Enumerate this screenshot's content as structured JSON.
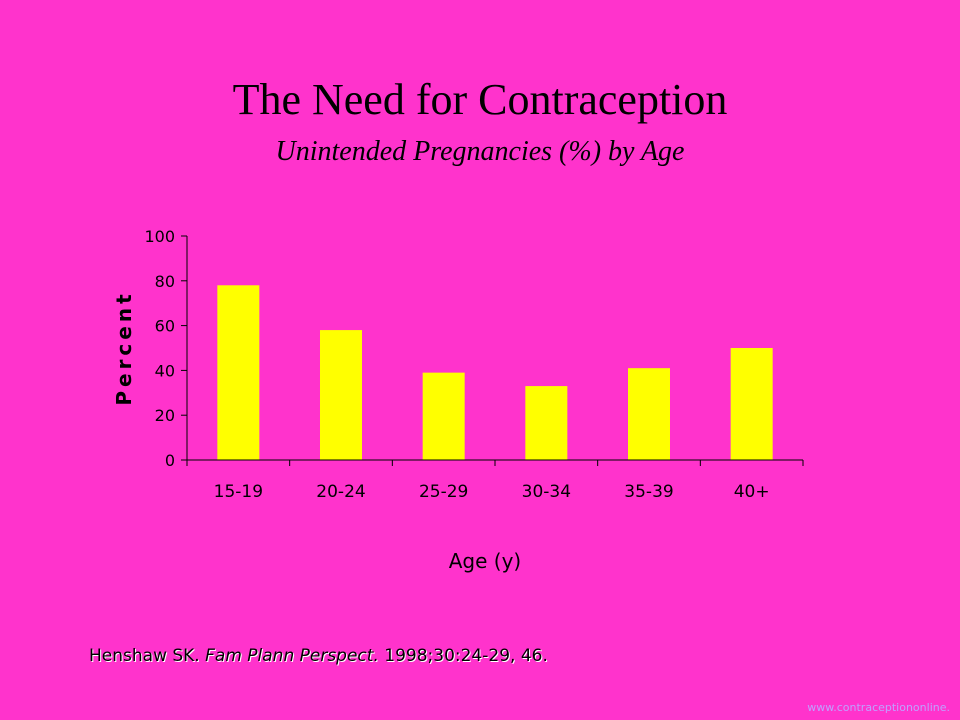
{
  "header": {
    "title": "The Need for Contraception",
    "subtitle": "Unintended Pregnancies (%) by Age"
  },
  "citation": {
    "author": "Henshaw SK.",
    "journal": "Fam Plann Perspect.",
    "details": "1998;30:24-29, 46."
  },
  "watermark": "www.contraceptiononline.",
  "colors": {
    "background": "#ff33cc",
    "bar": "#ffff00",
    "axis": "#000000"
  },
  "chart_data": {
    "type": "bar",
    "title": "Unintended Pregnancies (%) by Age",
    "categories": [
      "15-19",
      "20-24",
      "25-29",
      "30-34",
      "35-39",
      "40+"
    ],
    "values": [
      78,
      58,
      39,
      33,
      41,
      50
    ],
    "xlabel": "Age (y)",
    "ylabel": "Percent",
    "ylim": [
      0,
      100
    ],
    "yticks": [
      0,
      20,
      40,
      60,
      80,
      100
    ],
    "grid": false,
    "legend": "none"
  }
}
